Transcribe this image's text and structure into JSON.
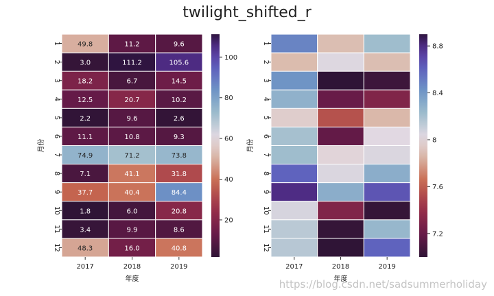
{
  "figure": {
    "title": "twilight_shifted_r",
    "watermark": "https://blog.csdn.net/sadsummerholiday"
  },
  "chart_data": [
    {
      "type": "heatmap",
      "cmap": "twilight_shifted_r",
      "annotated": true,
      "xlabel": "年度",
      "ylabel": "月份",
      "x_categories": [
        "2017",
        "2018",
        "2019"
      ],
      "y_categories": [
        "1",
        "2",
        "3",
        "4",
        "5",
        "6",
        "7",
        "8",
        "9",
        "10",
        "11",
        "12"
      ],
      "values": [
        [
          49.8,
          11.2,
          9.6
        ],
        [
          3.0,
          111.2,
          105.6
        ],
        [
          18.2,
          6.7,
          14.5
        ],
        [
          12.5,
          20.7,
          10.2
        ],
        [
          2.2,
          9.6,
          2.6
        ],
        [
          11.1,
          10.8,
          9.3
        ],
        [
          74.9,
          71.2,
          73.8
        ],
        [
          7.1,
          41.1,
          31.8
        ],
        [
          37.7,
          40.4,
          84.4
        ],
        [
          1.8,
          6.0,
          20.8
        ],
        [
          3.4,
          9.9,
          8.6
        ],
        [
          48.3,
          16.0,
          40.8
        ]
      ],
      "colorbar": {
        "vmin": 1.8,
        "vmax": 111.2,
        "ticks": [
          20,
          40,
          60,
          80,
          100
        ]
      }
    },
    {
      "type": "heatmap",
      "cmap": "twilight_shifted_r",
      "annotated": false,
      "xlabel": "年度",
      "ylabel": "月份",
      "x_categories": [
        "2017",
        "2018",
        "2019"
      ],
      "y_categories": [
        "1",
        "2",
        "3",
        "4",
        "5",
        "6",
        "7",
        "8",
        "9",
        "10",
        "11",
        "12"
      ],
      "values": [
        [
          8.48,
          7.88,
          8.22
        ],
        [
          7.87,
          8.04,
          7.88
        ],
        [
          8.42,
          7.0,
          7.05
        ],
        [
          8.28,
          7.2,
          7.3
        ],
        [
          7.96,
          7.55,
          7.86
        ],
        [
          8.2,
          7.18,
          8.03
        ],
        [
          8.22,
          8.0,
          8.05
        ],
        [
          8.6,
          8.05,
          8.3
        ],
        [
          8.8,
          8.3,
          8.65
        ],
        [
          8.06,
          7.3,
          7.02
        ],
        [
          8.14,
          7.02,
          8.25
        ],
        [
          8.15,
          7.0,
          8.6
        ]
      ],
      "colorbar": {
        "vmin": 7.0,
        "vmax": 8.9,
        "ticks": [
          7.2,
          7.6,
          8.0,
          8.4,
          8.8
        ]
      }
    }
  ]
}
